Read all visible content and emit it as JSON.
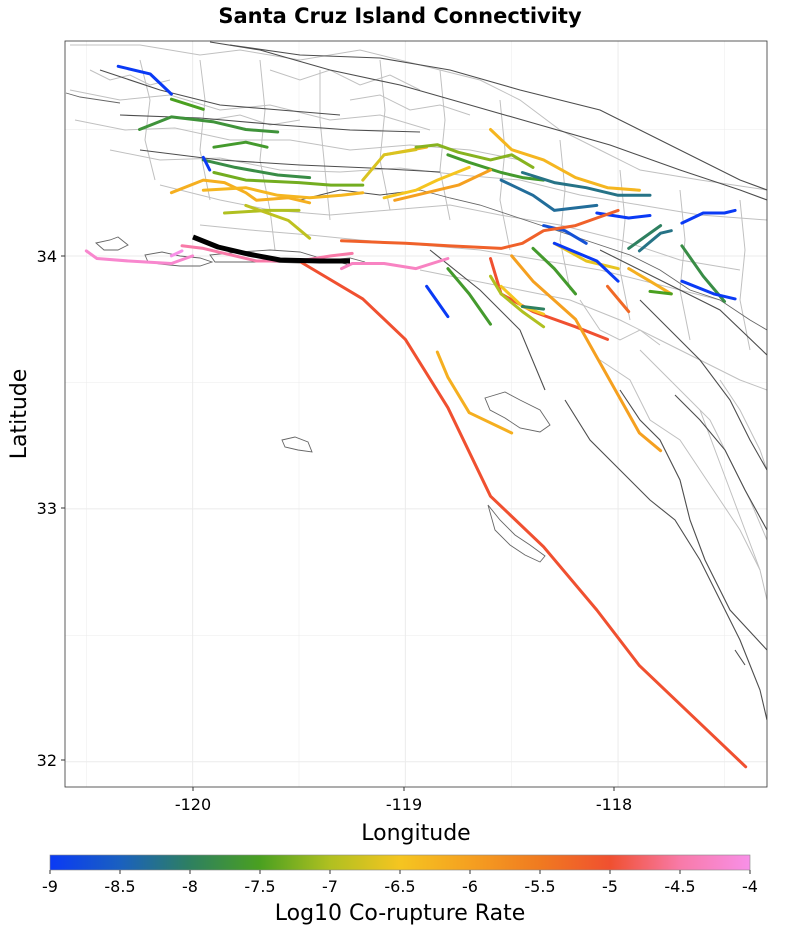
{
  "title": "Santa Cruz Island Connectivity",
  "x_axis": {
    "label": "Longitude",
    "ticks": [
      "-120",
      "-119",
      "-118"
    ]
  },
  "y_axis": {
    "label": "Latitude",
    "ticks": [
      "34",
      "33",
      "32"
    ]
  },
  "colorbar": {
    "label": "Log10 Co-rupture Rate",
    "ticks": [
      "-9",
      "-8.5",
      "-8",
      "-7.5",
      "-7",
      "-6.5",
      "-6",
      "-5.5",
      "-5",
      "-4.5",
      "-4"
    ],
    "min": -9,
    "max": -4
  },
  "colors": {
    "grid": "#ebebeb",
    "fault_network": "#c0c0c0",
    "major_fault": "#4d4d4d",
    "coastline": "#666666",
    "target_fault": "#000000",
    "blue": "#0a3af5",
    "teal": "#2e8070",
    "green": "#4aa020",
    "yellowgreen": "#b0c020",
    "yellow": "#f5c020",
    "orange": "#f5a020",
    "red_orange": "#f05830",
    "red": "#f06050",
    "pink": "#f87aa8",
    "light_pink": "#f88cd0"
  },
  "chart_data": {
    "type": "map",
    "title": "Santa Cruz Island Connectivity",
    "xlabel": "Longitude",
    "ylabel": "Latitude",
    "xlim": [
      -120.6,
      -117.3
    ],
    "ylim": [
      31.9,
      34.85
    ],
    "target_fault": "Santa Cruz Island",
    "color_scale": {
      "name": "Log10 Co-rupture Rate",
      "range": [
        -9,
        -4
      ]
    },
    "faults": [
      {
        "rate": -9.0,
        "points": [
          [
            -120.35,
            34.75
          ],
          [
            -120.2,
            34.72
          ],
          [
            -120.1,
            34.64
          ]
        ]
      },
      {
        "rate": -7.5,
        "points": [
          [
            -120.1,
            34.62
          ],
          [
            -119.95,
            34.58
          ]
        ]
      },
      {
        "rate": -7.7,
        "points": [
          [
            -120.25,
            34.5
          ],
          [
            -120.1,
            34.55
          ],
          [
            -119.9,
            34.53
          ],
          [
            -119.75,
            34.5
          ],
          [
            -119.6,
            34.49
          ]
        ]
      },
      {
        "rate": -7.6,
        "points": [
          [
            -119.9,
            34.43
          ],
          [
            -119.75,
            34.45
          ],
          [
            -119.65,
            34.43
          ]
        ]
      },
      {
        "rate": -7.8,
        "points": [
          [
            -119.95,
            34.38
          ],
          [
            -119.8,
            34.35
          ],
          [
            -119.6,
            34.32
          ],
          [
            -119.45,
            34.31
          ]
        ]
      },
      {
        "rate": -7.3,
        "points": [
          [
            -119.9,
            34.33
          ],
          [
            -119.75,
            34.3
          ],
          [
            -119.5,
            34.29
          ],
          [
            -119.35,
            34.28
          ],
          [
            -119.2,
            34.28
          ]
        ]
      },
      {
        "rate": -9.0,
        "points": [
          [
            -119.95,
            34.39
          ],
          [
            -119.92,
            34.34
          ]
        ]
      },
      {
        "rate": -6.2,
        "points": [
          [
            -120.1,
            34.25
          ],
          [
            -119.95,
            34.3
          ],
          [
            -119.85,
            34.29
          ],
          [
            -119.75,
            34.25
          ],
          [
            -119.7,
            34.22
          ],
          [
            -119.55,
            34.23
          ],
          [
            -119.45,
            34.21
          ]
        ]
      },
      {
        "rate": -6.3,
        "points": [
          [
            -119.95,
            34.26
          ],
          [
            -119.75,
            34.27
          ],
          [
            -119.6,
            34.24
          ],
          [
            -119.45,
            34.23
          ],
          [
            -119.3,
            34.24
          ],
          [
            -119.2,
            34.25
          ]
        ]
      },
      {
        "rate": -7.0,
        "points": [
          [
            -119.85,
            34.17
          ],
          [
            -119.65,
            34.18
          ],
          [
            -119.5,
            34.18
          ]
        ]
      },
      {
        "rate": -6.9,
        "points": [
          [
            -119.75,
            34.2
          ],
          [
            -119.55,
            34.14
          ],
          [
            -119.45,
            34.07
          ]
        ]
      },
      {
        "rate": -6.3,
        "points": [
          [
            -119.1,
            34.4
          ],
          [
            -118.9,
            34.43
          ]
        ]
      },
      {
        "rate": -6.7,
        "points": [
          [
            -119.2,
            34.3
          ],
          [
            -119.1,
            34.4
          ],
          [
            -118.95,
            34.42
          ]
        ]
      },
      {
        "rate": -7.2,
        "points": [
          [
            -118.95,
            34.43
          ],
          [
            -118.85,
            34.44
          ],
          [
            -118.75,
            34.41
          ],
          [
            -118.6,
            34.38
          ],
          [
            -118.5,
            34.4
          ],
          [
            -118.4,
            34.35
          ]
        ]
      },
      {
        "rate": -7.6,
        "points": [
          [
            -118.8,
            34.4
          ],
          [
            -118.7,
            34.37
          ],
          [
            -118.55,
            34.33
          ],
          [
            -118.45,
            34.31
          ],
          [
            -118.35,
            34.3
          ]
        ]
      },
      {
        "rate": -6.5,
        "points": [
          [
            -119.1,
            34.23
          ],
          [
            -118.95,
            34.26
          ],
          [
            -118.85,
            34.3
          ],
          [
            -118.7,
            34.35
          ]
        ]
      },
      {
        "rate": -6.0,
        "points": [
          [
            -119.05,
            34.22
          ],
          [
            -118.9,
            34.25
          ],
          [
            -118.75,
            34.28
          ],
          [
            -118.6,
            34.34
          ]
        ]
      },
      {
        "rate": -6.3,
        "points": [
          [
            -118.6,
            34.5
          ],
          [
            -118.5,
            34.42
          ],
          [
            -118.35,
            34.38
          ],
          [
            -118.2,
            34.31
          ],
          [
            -118.05,
            34.27
          ],
          [
            -117.9,
            34.26
          ]
        ]
      },
      {
        "rate": -8.2,
        "points": [
          [
            -118.45,
            34.33
          ],
          [
            -118.3,
            34.29
          ],
          [
            -118.15,
            34.27
          ],
          [
            -118.0,
            34.24
          ],
          [
            -117.85,
            34.24
          ]
        ]
      },
      {
        "rate": -8.3,
        "points": [
          [
            -118.55,
            34.3
          ],
          [
            -118.4,
            34.24
          ],
          [
            -118.3,
            34.18
          ],
          [
            -118.1,
            34.2
          ]
        ]
      },
      {
        "rate": -9.0,
        "points": [
          [
            -118.1,
            34.17
          ],
          [
            -117.95,
            34.15
          ],
          [
            -117.85,
            34.16
          ]
        ]
      },
      {
        "rate": -9.0,
        "points": [
          [
            -117.7,
            34.13
          ],
          [
            -117.6,
            34.17
          ],
          [
            -117.5,
            34.17
          ],
          [
            -117.45,
            34.18
          ]
        ]
      },
      {
        "rate": -8.2,
        "points": [
          [
            -117.9,
            34.02
          ],
          [
            -117.8,
            34.09
          ],
          [
            -117.75,
            34.1
          ]
        ]
      },
      {
        "rate": -8.7,
        "points": [
          [
            -118.35,
            34.12
          ],
          [
            -118.25,
            34.1
          ],
          [
            -118.15,
            34.05
          ]
        ]
      },
      {
        "rate": -5.2,
        "points": [
          [
            -119.3,
            34.06
          ],
          [
            -119.0,
            34.05
          ],
          [
            -118.8,
            34.04
          ],
          [
            -118.55,
            34.03
          ],
          [
            -118.45,
            34.05
          ],
          [
            -118.35,
            34.1
          ],
          [
            -118.2,
            34.12
          ],
          [
            -118.1,
            34.15
          ],
          [
            -118.0,
            34.18
          ]
        ]
      },
      {
        "rate": -4.5,
        "points": [
          [
            -120.05,
            34.04
          ],
          [
            -119.95,
            34.03
          ],
          [
            -119.85,
            34.01
          ],
          [
            -119.7,
            33.98
          ],
          [
            -119.5,
            33.98
          ],
          [
            -119.35,
            34.0
          ],
          [
            -119.25,
            34.01
          ]
        ]
      },
      {
        "rate": -4.3,
        "points": [
          [
            -119.3,
            33.95
          ],
          [
            -119.25,
            33.97
          ],
          [
            -119.1,
            33.97
          ],
          [
            -118.95,
            33.95
          ],
          [
            -118.8,
            33.99
          ]
        ]
      },
      {
        "rate": -4.2,
        "points": [
          [
            -120.5,
            34.02
          ],
          [
            -120.45,
            33.99
          ],
          [
            -120.3,
            33.98
          ],
          [
            -120.1,
            33.97
          ],
          [
            -120.0,
            34.0
          ]
        ]
      },
      {
        "rate": -3.9,
        "points": [
          [
            -120.1,
            34.0
          ],
          [
            -120.05,
            34.02
          ]
        ]
      },
      {
        "rate": -5.0,
        "points": [
          [
            -119.5,
            33.98
          ],
          [
            -119.2,
            33.83
          ],
          [
            -119.0,
            33.67
          ],
          [
            -118.8,
            33.4
          ],
          [
            -118.6,
            33.05
          ],
          [
            -118.35,
            32.85
          ],
          [
            -118.1,
            32.6
          ],
          [
            -117.9,
            32.38
          ],
          [
            -117.6,
            32.14
          ],
          [
            -117.4,
            31.98
          ]
        ]
      },
      {
        "rate": -5.0,
        "points": [
          [
            -118.6,
            33.99
          ],
          [
            -118.55,
            33.85
          ],
          [
            -118.4,
            33.78
          ],
          [
            -118.2,
            33.72
          ],
          [
            -118.05,
            33.67
          ]
        ]
      },
      {
        "rate": -6.0,
        "points": [
          [
            -118.5,
            34.0
          ],
          [
            -118.4,
            33.9
          ],
          [
            -118.2,
            33.75
          ],
          [
            -118.1,
            33.6
          ],
          [
            -118.0,
            33.45
          ],
          [
            -117.9,
            33.3
          ],
          [
            -117.8,
            33.23
          ]
        ]
      },
      {
        "rate": -6.2,
        "points": [
          [
            -118.85,
            33.62
          ],
          [
            -118.8,
            33.52
          ],
          [
            -118.7,
            33.38
          ],
          [
            -118.5,
            33.3
          ]
        ]
      },
      {
        "rate": -7.6,
        "points": [
          [
            -118.8,
            33.95
          ],
          [
            -118.7,
            33.85
          ],
          [
            -118.6,
            33.73
          ]
        ]
      },
      {
        "rate": -7.0,
        "points": [
          [
            -118.6,
            33.92
          ],
          [
            -118.55,
            33.85
          ],
          [
            -118.45,
            33.78
          ],
          [
            -118.35,
            33.72
          ]
        ]
      },
      {
        "rate": -6.5,
        "points": [
          [
            -118.55,
            33.88
          ],
          [
            -118.45,
            33.8
          ],
          [
            -118.35,
            33.77
          ]
        ]
      },
      {
        "rate": -9.0,
        "points": [
          [
            -118.9,
            33.88
          ],
          [
            -118.8,
            33.76
          ]
        ]
      },
      {
        "rate": -7.6,
        "points": [
          [
            -118.4,
            34.03
          ],
          [
            -118.3,
            33.95
          ],
          [
            -118.2,
            33.85
          ]
        ]
      },
      {
        "rate": -8.0,
        "points": [
          [
            -118.45,
            33.8
          ],
          [
            -118.35,
            33.79
          ]
        ]
      },
      {
        "rate": -6.6,
        "points": [
          [
            -118.3,
            34.05
          ],
          [
            -118.15,
            33.98
          ],
          [
            -118.0,
            33.95
          ]
        ]
      },
      {
        "rate": -9.0,
        "points": [
          [
            -118.3,
            34.05
          ],
          [
            -118.1,
            33.98
          ],
          [
            -118.0,
            33.9
          ]
        ]
      },
      {
        "rate": -6.2,
        "points": [
          [
            -117.95,
            33.95
          ],
          [
            -117.85,
            33.9
          ],
          [
            -117.75,
            33.85
          ]
        ]
      },
      {
        "rate": -5.3,
        "points": [
          [
            -118.05,
            33.88
          ],
          [
            -117.95,
            33.78
          ]
        ]
      },
      {
        "rate": -7.5,
        "points": [
          [
            -117.85,
            33.86
          ],
          [
            -117.75,
            33.85
          ]
        ]
      },
      {
        "rate": -7.8,
        "points": [
          [
            -117.7,
            34.04
          ],
          [
            -117.6,
            33.92
          ],
          [
            -117.5,
            33.82
          ]
        ]
      },
      {
        "rate": -9.0,
        "points": [
          [
            -117.7,
            33.9
          ],
          [
            -117.55,
            33.85
          ],
          [
            -117.45,
            33.83
          ]
        ]
      },
      {
        "rate": -8.0,
        "points": [
          [
            -117.95,
            34.03
          ],
          [
            -117.8,
            34.12
          ]
        ]
      }
    ]
  }
}
